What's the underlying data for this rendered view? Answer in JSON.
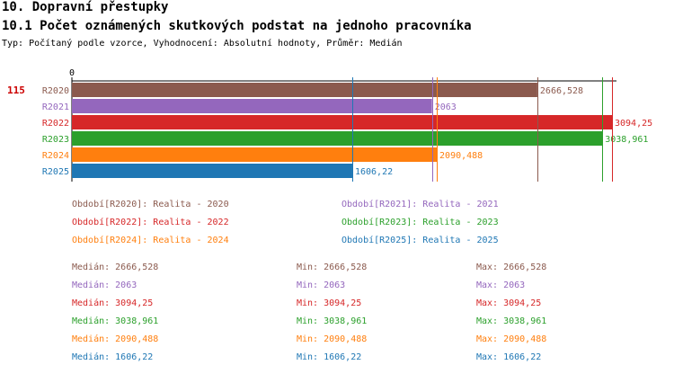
{
  "header": {
    "title": "10. Dopravní přestupky",
    "subtitle": "10.1 Počet oznámených skutkových podstat na jednoho pracovníka",
    "type_line": "Typ: Počítaný podle vzorce, Vyhodnocení: Absolutní hodnoty, Průměr: Medián"
  },
  "chart_data": {
    "type": "bar",
    "orientation": "horizontal",
    "categories": [
      "R2020",
      "R2021",
      "R2022",
      "R2023",
      "R2024",
      "R2025"
    ],
    "values": [
      2666.528,
      2063,
      3094.25,
      3038.961,
      2090.488,
      1606.22
    ],
    "value_labels": [
      "2666,528",
      "2063",
      "3094,25",
      "3038,961",
      "2090,488",
      "1606,22"
    ],
    "colors": [
      "#8b5a4e",
      "#9467bd",
      "#d62728",
      "#2ca02c",
      "#ff7f0e",
      "#1f77b4"
    ],
    "x_tick_label": "0",
    "xlim": [
      0,
      3120
    ],
    "marker_label": "115",
    "marker_color": "#cc0000",
    "reference_lines": [
      {
        "value": 1606.22,
        "color": "#1f77b4"
      },
      {
        "value": 2063,
        "color": "#9467bd"
      },
      {
        "value": 2090.488,
        "color": "#ff7f0e"
      },
      {
        "value": 2666.528,
        "color": "#8b5a4e"
      },
      {
        "value": 3038.961,
        "color": "#2ca02c"
      },
      {
        "value": 3094.25,
        "color": "#d62728"
      }
    ]
  },
  "legend": [
    {
      "text": "Období[R2020]: Realita - 2020",
      "color": "#8b5a4e"
    },
    {
      "text": "Období[R2021]: Realita - 2021",
      "color": "#9467bd"
    },
    {
      "text": "Období[R2022]: Realita - 2022",
      "color": "#d62728"
    },
    {
      "text": "Období[R2023]: Realita - 2023",
      "color": "#2ca02c"
    },
    {
      "text": "Období[R2024]: Realita - 2024",
      "color": "#ff7f0e"
    },
    {
      "text": "Období[R2025]: Realita - 2025",
      "color": "#1f77b4"
    }
  ],
  "stats": [
    {
      "median": "Medián: 2666,528",
      "min": "Min: 2666,528",
      "max": "Max: 2666,528",
      "color": "#8b5a4e"
    },
    {
      "median": "Medián: 2063",
      "min": "Min: 2063",
      "max": "Max: 2063",
      "color": "#9467bd"
    },
    {
      "median": "Medián: 3094,25",
      "min": "Min: 3094,25",
      "max": "Max: 3094,25",
      "color": "#d62728"
    },
    {
      "median": "Medián: 3038,961",
      "min": "Min: 3038,961",
      "max": "Max: 3038,961",
      "color": "#2ca02c"
    },
    {
      "median": "Medián: 2090,488",
      "min": "Min: 2090,488",
      "max": "Max: 2090,488",
      "color": "#ff7f0e"
    },
    {
      "median": "Medián: 1606,22",
      "min": "Min: 1606,22",
      "max": "Max: 1606,22",
      "color": "#1f77b4"
    }
  ]
}
